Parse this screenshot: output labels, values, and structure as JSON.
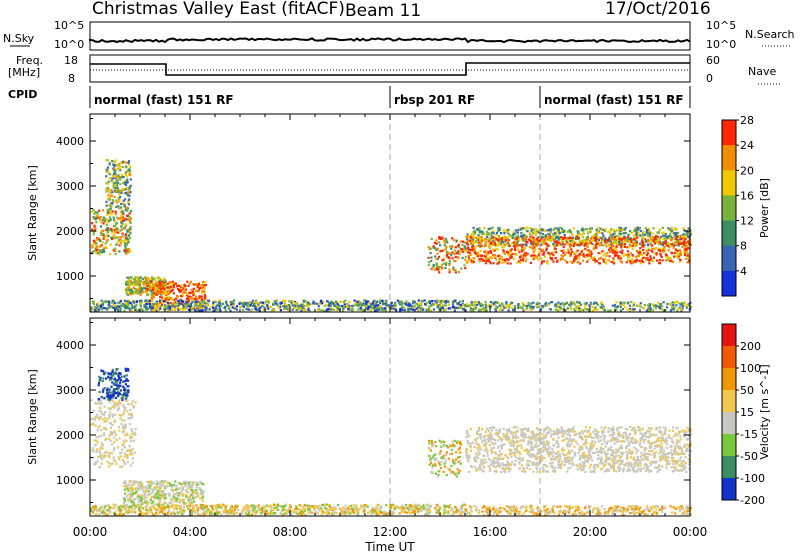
{
  "header": {
    "title": "Christmas Valley East (fitACF)",
    "beam": "Beam 11",
    "date": "17/Oct/2016"
  },
  "panels": {
    "nsky_label": "N.Sky",
    "nsky_ticks": [
      "10^5",
      "10^0"
    ],
    "nsearch_label": "N.Search",
    "nsearch_ticks": [
      "10^5",
      "10^0"
    ],
    "freq_label_1": "Freq.",
    "freq_label_2": "[MHz]",
    "freq_ticks": [
      "18",
      "8"
    ],
    "nave_label": "Nave",
    "nave_ticks": [
      "60",
      "0"
    ],
    "cpid_label": "CPID",
    "cpid_segments": [
      {
        "label": "normal (fast) 151 RF",
        "start_h": 0,
        "end_h": 12
      },
      {
        "label": "rbsp 201 RF",
        "start_h": 12,
        "end_h": 18
      },
      {
        "label": "normal (fast) 151 RF",
        "start_h": 18,
        "end_h": 24
      }
    ]
  },
  "chart_data": [
    {
      "type": "heatmap",
      "name": "Power",
      "ylabel": "Slant Range [km]",
      "ylim": [
        200,
        4600
      ],
      "yticks": [
        "1000",
        "2000",
        "3000",
        "4000"
      ],
      "colorbar_label": "Power [dB]",
      "colorbar_ticks": [
        "4",
        "8",
        "12",
        "16",
        "20",
        "24",
        "28"
      ],
      "colorbar_colors": [
        "#1432dc",
        "#3c64b4",
        "#3c8c64",
        "#78b43c",
        "#f0c800",
        "#f08c00",
        "#ff2800"
      ]
    },
    {
      "type": "heatmap",
      "name": "Velocity",
      "ylabel": "Slant Range [km]",
      "ylim": [
        200,
        4600
      ],
      "yticks": [
        "1000",
        "2000",
        "3000",
        "4000"
      ],
      "colorbar_label": "Velocity [m s^-1]",
      "colorbar_ticks": [
        "200",
        "100",
        "50",
        "15",
        "-15",
        "-50",
        "-100",
        "-200"
      ],
      "colorbar_colors": [
        "#1432c8",
        "#3c8c64",
        "#78c83c",
        "#c8c8c0",
        "#f0c850",
        "#f09600",
        "#f05a00",
        "#e61414"
      ]
    }
  ],
  "xaxis": {
    "label": "Time UT",
    "ticks": [
      "00:00",
      "04:00",
      "08:00",
      "12:00",
      "16:00",
      "20:00",
      "00:00"
    ],
    "range_h": [
      0,
      24
    ]
  }
}
